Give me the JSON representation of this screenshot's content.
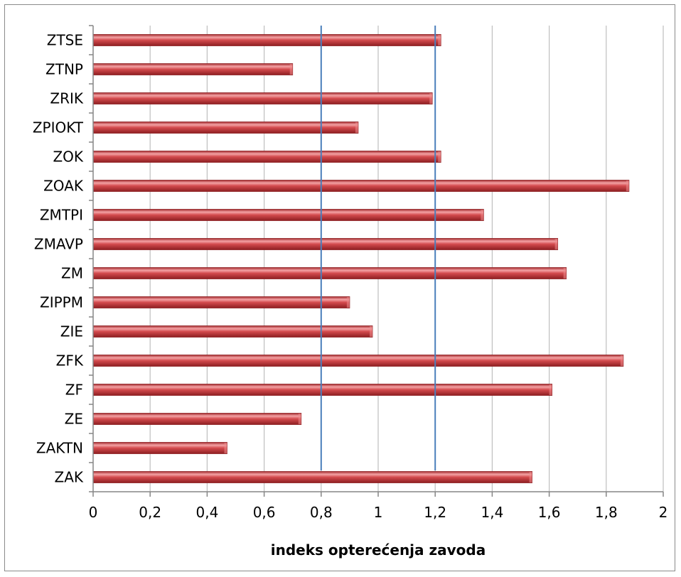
{
  "chart_data": {
    "type": "bar",
    "orientation": "horizontal",
    "categories": [
      "ZAK",
      "ZAKTN",
      "ZE",
      "ZF",
      "ZFK",
      "ZIE",
      "ZIPPM",
      "ZM",
      "ZMAVP",
      "ZMTPI",
      "ZOAK",
      "ZOK",
      "ZPIOKT",
      "ZRIK",
      "ZTNP",
      "ZTSE"
    ],
    "values": [
      1.54,
      0.47,
      0.73,
      1.61,
      1.86,
      0.98,
      0.9,
      1.66,
      1.63,
      1.37,
      1.88,
      1.22,
      0.93,
      1.19,
      0.7,
      1.22
    ],
    "xlabel": "indeks opterećenja zavoda",
    "ylabel": "",
    "xlim": [
      0,
      2
    ],
    "xticks": [
      "0",
      "0,2",
      "0,4",
      "0,6",
      "0,8",
      "1",
      "1,2",
      "1,4",
      "1,6",
      "1,8",
      "2"
    ],
    "reference_lines": [
      0.8,
      1.2
    ],
    "grid": true,
    "legend": "none",
    "colors": {
      "bar": "#c0393b",
      "bar_light": "#ef8a8c",
      "bar_dark": "#8e1f22",
      "grid": "#bfbfbf",
      "reference_line": "#4a7ebb",
      "axis": "#868686"
    }
  }
}
